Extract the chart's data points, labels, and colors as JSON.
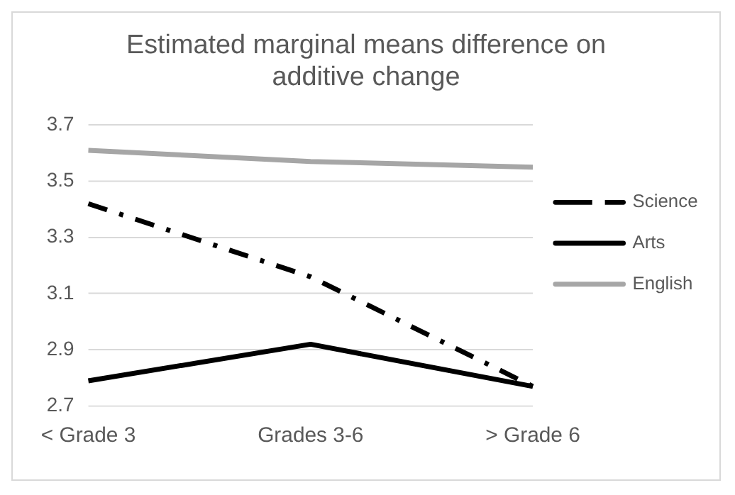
{
  "chart_data": {
    "type": "line",
    "title": "Estimated marginal means difference on additive change",
    "categories": [
      "< Grade 3",
      "Grades 3-6",
      "> Grade 6"
    ],
    "series": [
      {
        "name": "Science",
        "color": "#000000",
        "values": [
          3.42,
          3.16,
          2.77
        ],
        "line_style": "dashed"
      },
      {
        "name": "Arts",
        "color": "#000000",
        "values": [
          2.79,
          2.92,
          2.77
        ],
        "line_style": "solid"
      },
      {
        "name": "English",
        "color": "#a6a6a6",
        "values": [
          3.61,
          3.57,
          3.55
        ],
        "line_style": "solid"
      }
    ],
    "ylim": [
      2.7,
      3.7
    ],
    "yticks": [
      2.7,
      2.9,
      3.1,
      3.3,
      3.5,
      3.7
    ],
    "grid": "y",
    "legend": "right",
    "marker": "none"
  }
}
